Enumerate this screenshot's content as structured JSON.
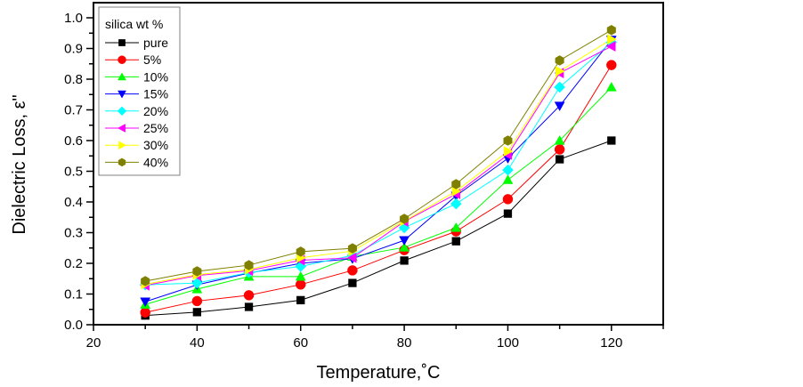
{
  "chart_data": {
    "type": "line",
    "title": "",
    "xlabel": "Temperature,˚C",
    "ylabel": "Dielectric Loss, ε\"",
    "xlim": [
      20,
      130
    ],
    "ylim": [
      0.0,
      1.0
    ],
    "xticks": [
      20,
      40,
      60,
      80,
      100,
      120
    ],
    "xtick_labels": [
      "20",
      "40",
      "60",
      "80",
      "100",
      "120"
    ],
    "yticks": [
      0.0,
      0.1,
      0.2,
      0.3,
      0.4,
      0.5,
      0.6,
      0.7,
      0.8,
      0.9,
      1.0
    ],
    "ytick_labels": [
      "0.0",
      "0.1",
      "0.2",
      "0.3",
      "0.4",
      "0.5",
      "0.6",
      "0.7",
      "0.8",
      "0.9",
      "1.0"
    ],
    "grid": false,
    "legend": {
      "title": "silica wt %",
      "position": "top-left"
    },
    "x": [
      30,
      40,
      50,
      60,
      70,
      80,
      90,
      100,
      110,
      120
    ],
    "series": [
      {
        "name": "pure",
        "color": "#000000",
        "line_color": "#000000",
        "marker": "square",
        "values": [
          0.03,
          0.041,
          0.058,
          0.08,
          0.136,
          0.209,
          0.272,
          0.362,
          0.539,
          0.6
        ]
      },
      {
        "name": "5%",
        "color": "#ff0000",
        "line_color": "#ff0000",
        "marker": "circle",
        "values": [
          0.04,
          0.077,
          0.096,
          0.131,
          0.177,
          0.243,
          0.304,
          0.409,
          0.571,
          0.846
        ]
      },
      {
        "name": "10%",
        "color": "#00ff00",
        "line_color": "#00ff00",
        "marker": "triangle-up",
        "values": [
          0.066,
          0.116,
          0.157,
          0.157,
          0.222,
          0.252,
          0.316,
          0.472,
          0.6,
          0.774
        ]
      },
      {
        "name": "15%",
        "color": "#0000ff",
        "line_color": "#0000ff",
        "marker": "triangle-down",
        "values": [
          0.075,
          0.13,
          0.168,
          0.2,
          0.215,
          0.275,
          0.42,
          0.542,
          0.713,
          0.928
        ]
      },
      {
        "name": "20%",
        "color": "#00ffff",
        "line_color": "#00ffff",
        "marker": "diamond",
        "values": [
          0.13,
          0.136,
          0.17,
          0.19,
          0.226,
          0.316,
          0.394,
          0.504,
          0.774,
          0.92
        ]
      },
      {
        "name": "25%",
        "color": "#ff00ff",
        "line_color": "#ff00ff",
        "marker": "triangle-left",
        "values": [
          0.128,
          0.16,
          0.176,
          0.21,
          0.218,
          0.336,
          0.426,
          0.554,
          0.82,
          0.907
        ]
      },
      {
        "name": "30%",
        "color": "#ffff00",
        "line_color": "#ffff00",
        "marker": "triangle-right",
        "values": [
          0.132,
          0.163,
          0.18,
          0.218,
          0.24,
          0.338,
          0.435,
          0.565,
          0.826,
          0.93
        ]
      },
      {
        "name": "40%",
        "color": "#808000",
        "line_color": "#808000",
        "marker": "hexagon",
        "values": [
          0.142,
          0.174,
          0.194,
          0.238,
          0.249,
          0.345,
          0.458,
          0.6,
          0.861,
          0.96
        ]
      }
    ]
  }
}
